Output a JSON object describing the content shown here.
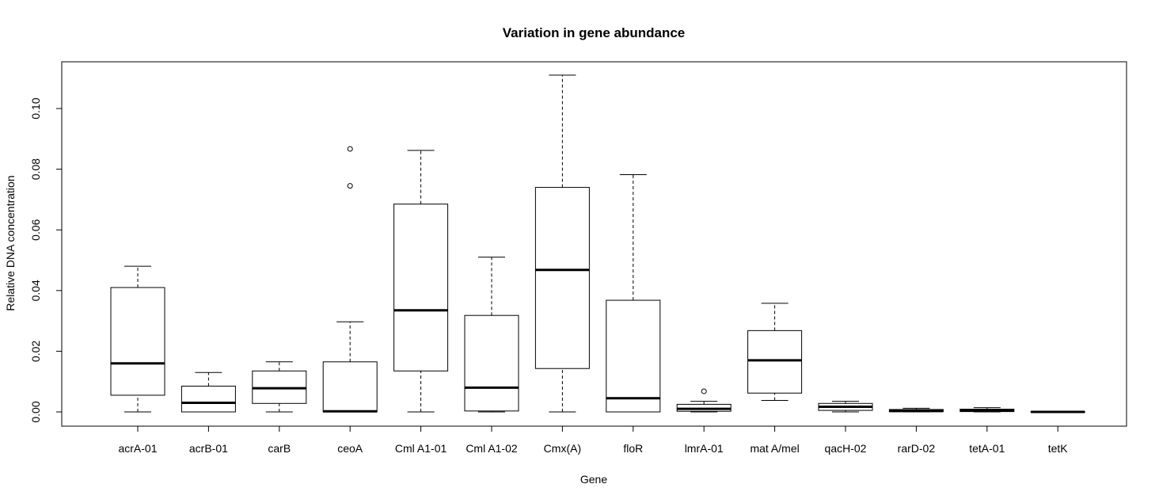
{
  "chart_data": {
    "type": "boxplot",
    "title": "Variation in gene abundance",
    "xlabel": "Gene",
    "ylabel": "Relative DNA concentration",
    "ylim": [
      -0.004,
      0.115
    ],
    "yticks": [
      0.0,
      0.02,
      0.04,
      0.06,
      0.08,
      0.1
    ],
    "ytick_labels": [
      "0.00",
      "0.02",
      "0.04",
      "0.06",
      "0.08",
      "0.10"
    ],
    "categories": [
      "acrA-01",
      "acrB-01",
      "carB",
      "ceoA",
      "Cml A1-01",
      "Cml A1-02",
      "Cmx(A)",
      "floR",
      "lmrA-01",
      "mat A/mel",
      "qacH-02",
      "rarD-02",
      "tetA-01",
      "tetK"
    ],
    "boxes": [
      {
        "min": 0.0,
        "q1": 0.0055,
        "median": 0.016,
        "q3": 0.041,
        "max": 0.048,
        "outliers": []
      },
      {
        "min": 0.0,
        "q1": 0.0,
        "median": 0.003,
        "q3": 0.0085,
        "max": 0.013,
        "outliers": []
      },
      {
        "min": 0.0,
        "q1": 0.0028,
        "median": 0.0078,
        "q3": 0.0135,
        "max": 0.0165,
        "outliers": []
      },
      {
        "min": 0.0,
        "q1": 0.0,
        "median": 0.0002,
        "q3": 0.0165,
        "max": 0.0297,
        "outliers": [
          0.0745,
          0.0867
        ]
      },
      {
        "min": 0.0,
        "q1": 0.0135,
        "median": 0.0335,
        "q3": 0.0685,
        "max": 0.0862,
        "outliers": []
      },
      {
        "min": 0.0,
        "q1": 0.0003,
        "median": 0.008,
        "q3": 0.0318,
        "max": 0.051,
        "outliers": []
      },
      {
        "min": 0.0,
        "q1": 0.0143,
        "median": 0.0468,
        "q3": 0.074,
        "max": 0.111,
        "outliers": []
      },
      {
        "min": 0.0,
        "q1": 0.0,
        "median": 0.0045,
        "q3": 0.0368,
        "max": 0.0782,
        "outliers": []
      },
      {
        "min": 0.0,
        "q1": 0.0002,
        "median": 0.001,
        "q3": 0.0025,
        "max": 0.0035,
        "outliers": [
          0.0068
        ]
      },
      {
        "min": 0.0038,
        "q1": 0.0062,
        "median": 0.017,
        "q3": 0.0268,
        "max": 0.0358,
        "outliers": []
      },
      {
        "min": 0.0,
        "q1": 0.0005,
        "median": 0.0017,
        "q3": 0.0028,
        "max": 0.0035,
        "outliers": []
      },
      {
        "min": 0.0,
        "q1": 0.0001,
        "median": 0.0003,
        "q3": 0.0008,
        "max": 0.0012,
        "outliers": []
      },
      {
        "min": 0.0,
        "q1": 0.0001,
        "median": 0.0004,
        "q3": 0.0009,
        "max": 0.0014,
        "outliers": []
      },
      {
        "min": 0.0,
        "q1": 0.0,
        "median": 0.0,
        "q3": 0.0001,
        "max": 0.0001,
        "outliers": []
      }
    ]
  }
}
